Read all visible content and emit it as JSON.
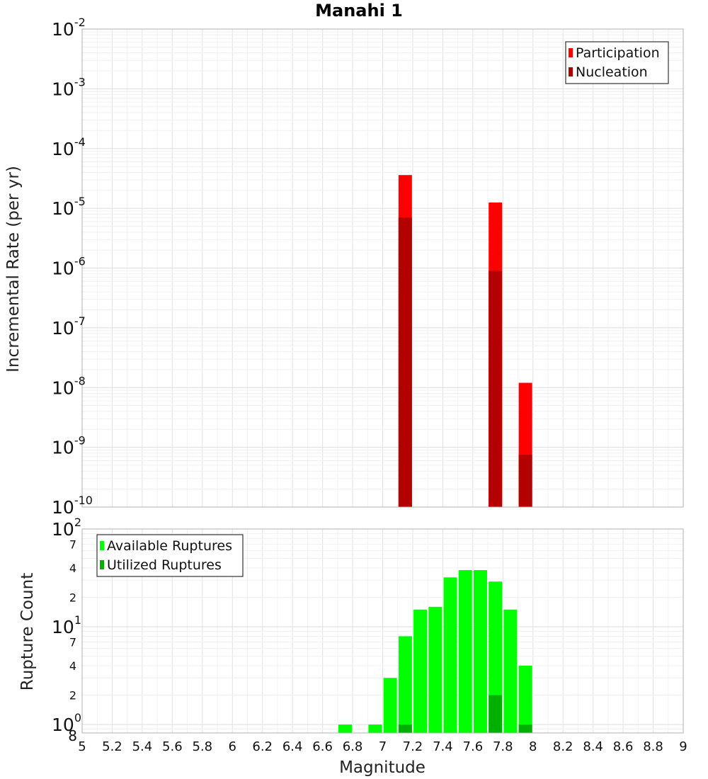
{
  "chart_data": [
    {
      "type": "bar",
      "title": "Manahi 1",
      "xlabel": "",
      "ylabel": "Incremental Rate (per yr)",
      "yscale": "log",
      "xlim": [
        5,
        9
      ],
      "ylim": [
        1e-10,
        0.01
      ],
      "grid": true,
      "legend_position": "top-right",
      "y_ticks": [
        {
          "base": "10",
          "exp": "-2",
          "value": 0.01
        },
        {
          "base": "10",
          "exp": "-3",
          "value": 0.001
        },
        {
          "base": "10",
          "exp": "-4",
          "value": 0.0001
        },
        {
          "base": "10",
          "exp": "-5",
          "value": 1e-05
        },
        {
          "base": "10",
          "exp": "-6",
          "value": 1e-06
        },
        {
          "base": "10",
          "exp": "-7",
          "value": 1e-07
        },
        {
          "base": "10",
          "exp": "-8",
          "value": 1e-08
        },
        {
          "base": "10",
          "exp": "-9",
          "value": 1e-09
        },
        {
          "base": "10",
          "exp": "-10",
          "value": 1e-10
        }
      ],
      "series": [
        {
          "name": "Participation",
          "color": "#ff0000",
          "points": [
            {
              "x": 7.15,
              "y": 3.6e-05
            },
            {
              "x": 7.75,
              "y": 1.25e-05
            },
            {
              "x": 7.95,
              "y": 1.2e-08
            }
          ]
        },
        {
          "name": "Nucleation",
          "color": "#b30000",
          "points": [
            {
              "x": 7.15,
              "y": 7e-06
            },
            {
              "x": 7.75,
              "y": 9e-07
            },
            {
              "x": 7.95,
              "y": 7.5e-10
            }
          ]
        }
      ]
    },
    {
      "type": "bar",
      "title": "",
      "xlabel": "Magnitude",
      "ylabel": "Rupture Count",
      "yscale": "log",
      "xlim": [
        5,
        9
      ],
      "ylim": [
        0.82,
        100
      ],
      "grid": true,
      "legend_position": "top-left",
      "x_ticks": [
        "5",
        "5.2",
        "5.4",
        "5.6",
        "5.8",
        "6",
        "6.2",
        "6.4",
        "6.6",
        "6.8",
        "7",
        "7.2",
        "7.4",
        "7.6",
        "7.8",
        "8",
        "8.2",
        "8.4",
        "8.6",
        "8.8",
        "9"
      ],
      "y_major_ticks": [
        {
          "base": "10",
          "exp": "2",
          "value": 100
        },
        {
          "base": "10",
          "exp": "1",
          "value": 10
        },
        {
          "base": "10",
          "exp": "0",
          "value": 1
        }
      ],
      "y_minor_ticks": [
        {
          "label": "7",
          "value": 70
        },
        {
          "label": "4",
          "value": 40
        },
        {
          "label": "2",
          "value": 20
        },
        {
          "label": "7",
          "value": 7
        },
        {
          "label": "4",
          "value": 4
        },
        {
          "label": "2",
          "value": 2
        },
        {
          "label": "8",
          "value": 0.82
        }
      ],
      "series": [
        {
          "name": "Available Ruptures",
          "color": "#00ff00",
          "points": [
            {
              "x": 6.75,
              "y": 1
            },
            {
              "x": 6.95,
              "y": 1
            },
            {
              "x": 7.05,
              "y": 3
            },
            {
              "x": 7.15,
              "y": 8
            },
            {
              "x": 7.25,
              "y": 15
            },
            {
              "x": 7.35,
              "y": 16
            },
            {
              "x": 7.45,
              "y": 32
            },
            {
              "x": 7.55,
              "y": 38
            },
            {
              "x": 7.65,
              "y": 38
            },
            {
              "x": 7.75,
              "y": 29
            },
            {
              "x": 7.85,
              "y": 15
            },
            {
              "x": 7.95,
              "y": 4
            }
          ]
        },
        {
          "name": "Utilized Ruptures",
          "color": "#00b000",
          "points": [
            {
              "x": 7.15,
              "y": 1
            },
            {
              "x": 7.75,
              "y": 2
            },
            {
              "x": 7.95,
              "y": 1
            }
          ]
        }
      ]
    }
  ]
}
